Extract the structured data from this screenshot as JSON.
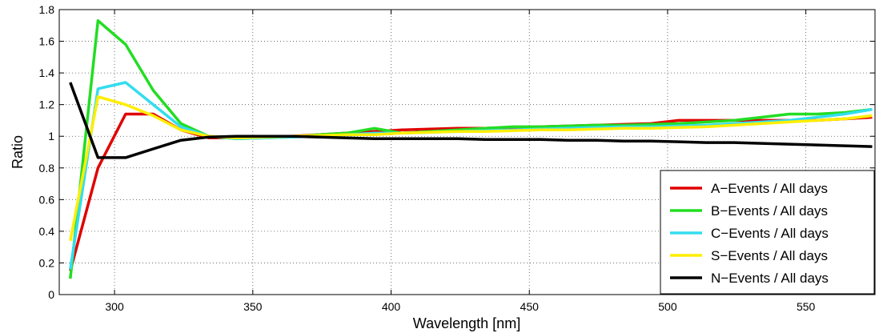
{
  "chart_data": {
    "type": "line",
    "xlabel": "Wavelength [nm]",
    "ylabel": "Ratio",
    "xlim": [
      280,
      575
    ],
    "ylim": [
      0,
      1.8
    ],
    "xticks": [
      300,
      350,
      400,
      450,
      500,
      550
    ],
    "yticks": [
      0,
      0.2,
      0.4,
      0.6,
      0.8,
      1,
      1.2,
      1.4,
      1.6,
      1.8
    ],
    "xtick_labels": [
      "300",
      "350",
      "400",
      "450",
      "500",
      "550"
    ],
    "ytick_labels": [
      "0",
      "0.2",
      "0.4",
      "0.6",
      "0.8",
      "1",
      "1.2",
      "1.4",
      "1.6",
      "1.8"
    ],
    "grid": true,
    "legend_position": "bottom-right",
    "series": [
      {
        "name": "A−Events / All days",
        "color": "#e00000",
        "x": [
          284,
          294,
          304,
          314,
          324,
          334,
          344,
          354,
          364,
          374,
          384,
          394,
          404,
          414,
          424,
          434,
          444,
          454,
          464,
          474,
          484,
          494,
          504,
          514,
          524,
          534,
          544,
          554,
          564,
          574
        ],
        "y": [
          0.15,
          0.8,
          1.14,
          1.14,
          1.04,
          0.99,
          0.99,
          0.995,
          1.0,
          1.01,
          1.02,
          1.03,
          1.04,
          1.045,
          1.05,
          1.05,
          1.055,
          1.06,
          1.065,
          1.07,
          1.075,
          1.08,
          1.1,
          1.1,
          1.1,
          1.1,
          1.1,
          1.1,
          1.11,
          1.12
        ]
      },
      {
        "name": "B−Events / All days",
        "color": "#22dd22",
        "x": [
          284,
          294,
          304,
          314,
          324,
          334,
          344,
          354,
          364,
          374,
          384,
          394,
          404,
          414,
          424,
          434,
          444,
          454,
          464,
          474,
          484,
          494,
          504,
          514,
          524,
          534,
          544,
          554,
          564,
          574
        ],
        "y": [
          0.1,
          1.73,
          1.58,
          1.29,
          1.08,
          1.0,
          0.985,
          0.99,
          0.995,
          1.01,
          1.02,
          1.05,
          1.02,
          1.03,
          1.04,
          1.05,
          1.06,
          1.06,
          1.065,
          1.07,
          1.07,
          1.075,
          1.08,
          1.09,
          1.1,
          1.12,
          1.14,
          1.14,
          1.15,
          1.17
        ]
      },
      {
        "name": "C−Events / All days",
        "color": "#33ddee",
        "x": [
          284,
          294,
          304,
          314,
          324,
          334,
          344,
          354,
          364,
          374,
          384,
          394,
          404,
          414,
          424,
          434,
          444,
          454,
          464,
          474,
          484,
          494,
          504,
          514,
          524,
          534,
          544,
          554,
          564,
          574
        ],
        "y": [
          0.16,
          1.3,
          1.34,
          1.2,
          1.06,
          1.0,
          0.985,
          0.99,
          0.995,
          1.0,
          1.01,
          1.02,
          1.02,
          1.025,
          1.03,
          1.035,
          1.04,
          1.045,
          1.05,
          1.055,
          1.06,
          1.06,
          1.065,
          1.07,
          1.08,
          1.09,
          1.1,
          1.12,
          1.14,
          1.17
        ]
      },
      {
        "name": "S−Events / All days",
        "color": "#ffee00",
        "x": [
          284,
          294,
          304,
          314,
          324,
          334,
          344,
          354,
          364,
          374,
          384,
          394,
          404,
          414,
          424,
          434,
          444,
          454,
          464,
          474,
          484,
          494,
          504,
          514,
          524,
          534,
          544,
          554,
          564,
          574
        ],
        "y": [
          0.34,
          1.25,
          1.2,
          1.13,
          1.04,
          1.0,
          0.99,
          0.995,
          1.0,
          1.005,
          1.01,
          1.01,
          1.02,
          1.025,
          1.03,
          1.03,
          1.035,
          1.04,
          1.04,
          1.045,
          1.05,
          1.05,
          1.055,
          1.06,
          1.07,
          1.08,
          1.09,
          1.1,
          1.11,
          1.13
        ]
      },
      {
        "name": "N−Events / All days",
        "color": "#000000",
        "x": [
          284,
          294,
          304,
          314,
          324,
          334,
          344,
          354,
          364,
          374,
          384,
          394,
          404,
          414,
          424,
          434,
          444,
          454,
          464,
          474,
          484,
          494,
          504,
          514,
          524,
          534,
          544,
          554,
          564,
          574
        ],
        "y": [
          1.34,
          0.865,
          0.865,
          0.92,
          0.975,
          0.995,
          1.0,
          1.0,
          1.0,
          0.995,
          0.99,
          0.985,
          0.985,
          0.985,
          0.985,
          0.98,
          0.98,
          0.98,
          0.975,
          0.975,
          0.97,
          0.97,
          0.965,
          0.96,
          0.96,
          0.955,
          0.95,
          0.945,
          0.94,
          0.935
        ]
      }
    ]
  }
}
